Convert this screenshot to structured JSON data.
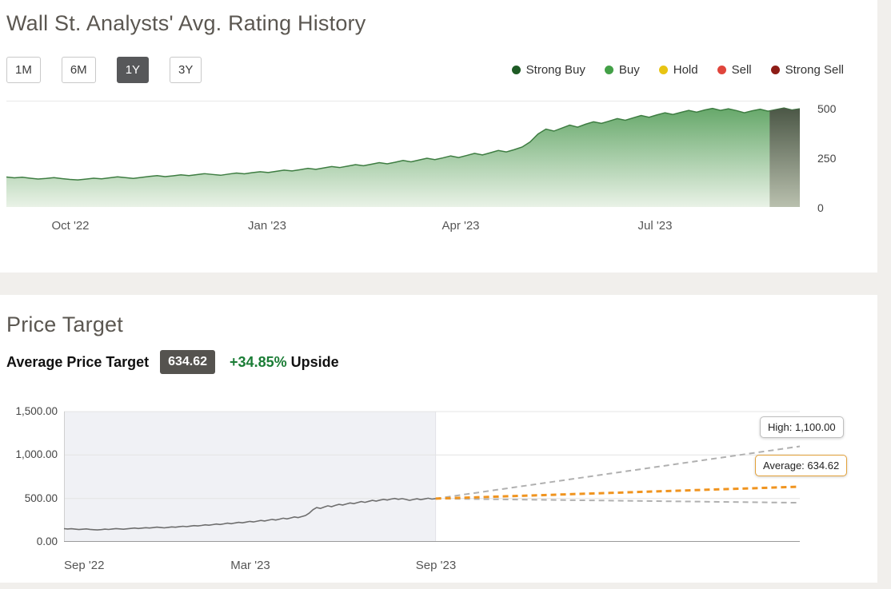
{
  "rating_section": {
    "title": "Wall St. Analysts' Avg. Rating History",
    "range_buttons": [
      {
        "label": "1M",
        "active": false
      },
      {
        "label": "6M",
        "active": false
      },
      {
        "label": "1Y",
        "active": true
      },
      {
        "label": "3Y",
        "active": false
      }
    ],
    "legend": [
      {
        "label": "Strong Buy",
        "color": "#1e5b25"
      },
      {
        "label": "Buy",
        "color": "#43a047"
      },
      {
        "label": "Hold",
        "color": "#e8c413"
      },
      {
        "label": "Sell",
        "color": "#e0453c"
      },
      {
        "label": "Strong Sell",
        "color": "#8e1d17"
      }
    ]
  },
  "price_target_section": {
    "title": "Price Target",
    "average_label": "Average Price Target",
    "average_value": "634.62",
    "upside_percent": "+34.85%",
    "upside_label": "Upside"
  },
  "chart_data": [
    {
      "id": "rating-history",
      "type": "area",
      "title": "Wall St. Analysts' Avg. Rating History",
      "x_tick_labels": [
        "Oct '22",
        "Jan '23",
        "Apr '23",
        "Jul '23"
      ],
      "x_tick_pos": [
        0.081,
        0.329,
        0.573,
        0.818
      ],
      "y_ticks": [
        500,
        250,
        0
      ],
      "ylim": [
        0,
        535
      ],
      "legend_position": "top-right",
      "grid": false,
      "values": [
        152,
        148,
        151,
        146,
        142,
        145,
        149,
        144,
        140,
        137,
        141,
        146,
        143,
        148,
        153,
        149,
        145,
        150,
        155,
        159,
        154,
        158,
        163,
        159,
        164,
        169,
        165,
        161,
        167,
        172,
        168,
        174,
        179,
        175,
        181,
        187,
        183,
        189,
        196,
        191,
        198,
        205,
        200,
        207,
        215,
        209,
        217,
        225,
        219,
        227,
        236,
        229,
        238,
        247,
        240,
        249,
        259,
        251,
        261,
        272,
        264,
        275,
        287,
        279,
        291,
        304,
        330,
        370,
        395,
        385,
        400,
        415,
        405,
        420,
        432,
        424,
        436,
        448,
        440,
        452,
        464,
        455,
        467,
        478,
        469,
        480,
        490,
        481,
        492,
        500,
        490,
        498,
        489,
        478,
        488,
        496,
        486,
        494,
        502,
        492,
        498
      ],
      "rating_segments": [
        {
          "rating": "Buy",
          "start": 0,
          "end": 0.962
        },
        {
          "rating": "Strong Buy",
          "start": 0.962,
          "end": 1
        }
      ],
      "colors": {
        "line": "#3e7d42",
        "fill_top": "#66a86a",
        "fill_bottom": "#e9f2e6",
        "strong_top": "#44503f",
        "strong_bottom": "#b9c0ae"
      }
    },
    {
      "id": "price-target",
      "type": "line",
      "title": "Price Target",
      "ylim": [
        0,
        1500
      ],
      "grid": true,
      "y_ticks": [
        {
          "label": "1,500.00",
          "value": 1500
        },
        {
          "label": "1,000.00",
          "value": 1000
        },
        {
          "label": "500.00",
          "value": 500
        },
        {
          "label": "0.00",
          "value": 0
        }
      ],
      "x_ticks": [
        {
          "label": "Sep '22",
          "pos": 0
        },
        {
          "label": "Mar '23",
          "pos": 0.253
        },
        {
          "label": "Sep '23",
          "pos": 0.505
        }
      ],
      "history_end_pos": 0.505,
      "history_color": "#6e6e6e",
      "shaded_region": {
        "from": 0,
        "to": 0.505,
        "color": "#f0f1f5"
      },
      "history_values": [
        152,
        148,
        151,
        146,
        142,
        145,
        149,
        144,
        140,
        137,
        141,
        146,
        143,
        148,
        153,
        149,
        145,
        150,
        155,
        159,
        154,
        158,
        163,
        159,
        164,
        169,
        165,
        161,
        167,
        172,
        168,
        174,
        179,
        175,
        181,
        187,
        183,
        189,
        196,
        191,
        198,
        205,
        200,
        207,
        215,
        209,
        217,
        225,
        219,
        227,
        236,
        229,
        238,
        247,
        240,
        249,
        259,
        251,
        261,
        272,
        264,
        275,
        287,
        279,
        291,
        304,
        330,
        370,
        395,
        385,
        400,
        415,
        405,
        420,
        432,
        424,
        436,
        448,
        440,
        452,
        464,
        455,
        467,
        478,
        469,
        480,
        490,
        481,
        492,
        500,
        490,
        498,
        489,
        478,
        488,
        496,
        486,
        494,
        502,
        492,
        498
      ],
      "projections": [
        {
          "name": "High",
          "value": 1100,
          "color": "#b0b0b0",
          "width": 2
        },
        {
          "name": "Low",
          "value": 450,
          "color": "#b0b0b0",
          "width": 2
        },
        {
          "name": "Average",
          "value": 634.62,
          "color": "#f0941f",
          "width": 3
        }
      ],
      "annotations": [
        {
          "text": "High: 1,100.00"
        },
        {
          "text": "Average: 634.62"
        }
      ]
    }
  ]
}
